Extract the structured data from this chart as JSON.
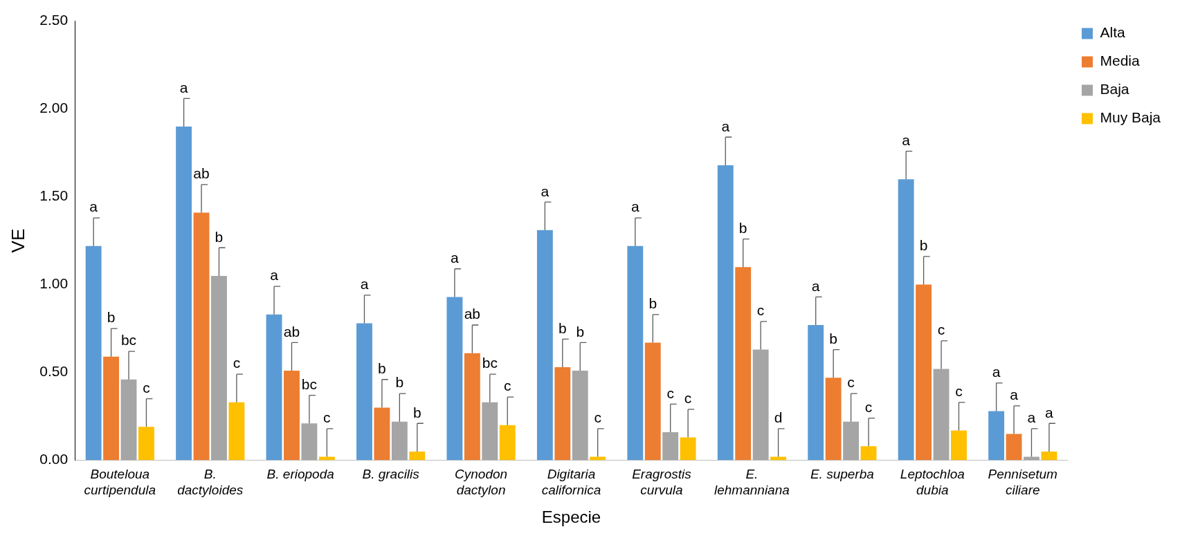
{
  "chart_data": {
    "type": "bar",
    "xlabel": "Especie",
    "ylabel": "VE",
    "categories": [
      "Bouteloua curtipendula",
      "B. dactyloides",
      "B. eriopoda",
      "B. gracilis",
      "Cynodon dactylon",
      "Digitaria californica",
      "Eragrostis curvula",
      "E. lehmanniana",
      "E. superba",
      "Leptochloa dubia",
      "Pennisetum ciliare"
    ],
    "series": [
      {
        "name": "Alta",
        "color": "#5b9bd5",
        "values": [
          1.22,
          1.9,
          0.83,
          0.78,
          0.93,
          1.31,
          1.22,
          1.68,
          0.77,
          1.6,
          0.28
        ],
        "errors": [
          [
            1.22,
            1.38
          ],
          [
            1.9,
            2.06
          ],
          [
            0.83,
            0.99
          ],
          [
            0.78,
            0.94
          ],
          [
            0.93,
            1.09
          ],
          [
            1.31,
            1.47
          ],
          [
            1.22,
            1.38
          ],
          [
            1.68,
            1.84
          ],
          [
            0.77,
            0.93
          ],
          [
            1.6,
            1.76
          ],
          [
            0.28,
            0.44
          ]
        ],
        "value_labels": [
          "a",
          "a",
          "a",
          "a",
          "a",
          "a",
          "a",
          "a",
          "a",
          "a",
          "a"
        ]
      },
      {
        "name": "Media",
        "color": "#ed7d31",
        "values": [
          0.59,
          1.41,
          0.51,
          0.3,
          0.61,
          0.53,
          0.67,
          1.1,
          0.47,
          1.0,
          0.15
        ],
        "errors": [
          [
            0.59,
            0.75
          ],
          [
            1.41,
            1.57
          ],
          [
            0.51,
            0.67
          ],
          [
            0.3,
            0.46
          ],
          [
            0.61,
            0.77
          ],
          [
            0.53,
            0.69
          ],
          [
            0.67,
            0.83
          ],
          [
            1.1,
            1.26
          ],
          [
            0.47,
            0.63
          ],
          [
            1.0,
            1.16
          ],
          [
            0.15,
            0.31
          ]
        ],
        "value_labels": [
          "b",
          "ab",
          "ab",
          "b",
          "ab",
          "b",
          "b",
          "b",
          "b",
          "b",
          "a"
        ]
      },
      {
        "name": "Baja",
        "color": "#a5a5a5",
        "values": [
          0.46,
          1.05,
          0.21,
          0.22,
          0.33,
          0.51,
          0.16,
          0.63,
          0.22,
          0.52,
          0.02
        ],
        "errors": [
          [
            0.46,
            0.62
          ],
          [
            1.05,
            1.21
          ],
          [
            0.21,
            0.37
          ],
          [
            0.22,
            0.38
          ],
          [
            0.33,
            0.49
          ],
          [
            0.51,
            0.67
          ],
          [
            0.16,
            0.32
          ],
          [
            0.63,
            0.79
          ],
          [
            0.22,
            0.38
          ],
          [
            0.52,
            0.68
          ],
          [
            0.02,
            0.18
          ]
        ],
        "value_labels": [
          "bc",
          "b",
          "bc",
          "b",
          "bc",
          "b",
          "c",
          "c",
          "c",
          "c",
          "a"
        ]
      },
      {
        "name": "Muy Baja",
        "color": "#ffc000",
        "values": [
          0.19,
          0.33,
          0.02,
          0.05,
          0.2,
          0.02,
          0.13,
          0.02,
          0.08,
          0.17,
          0.05
        ],
        "errors": [
          [
            0.19,
            0.35
          ],
          [
            0.33,
            0.49
          ],
          [
            0.02,
            0.18
          ],
          [
            0.05,
            0.21
          ],
          [
            0.2,
            0.36
          ],
          [
            0.02,
            0.18
          ],
          [
            0.13,
            0.29
          ],
          [
            0.02,
            0.18
          ],
          [
            0.08,
            0.24
          ],
          [
            0.17,
            0.33
          ],
          [
            0.05,
            0.21
          ]
        ],
        "value_labels": [
          "c",
          "c",
          "c",
          "b",
          "c",
          "c",
          "c",
          "d",
          "c",
          "c",
          "a"
        ]
      }
    ],
    "ylim": [
      0,
      2.5
    ],
    "yticks": [
      {
        "value": 0,
        "label": "0.00"
      },
      {
        "value": 0.5,
        "label": "0.50"
      },
      {
        "value": 1,
        "label": "1.00"
      },
      {
        "value": 1.5,
        "label": "1.50"
      },
      {
        "value": 2,
        "label": "2.00"
      },
      {
        "value": 2.5,
        "label": "2.50"
      }
    ],
    "grid": false,
    "legend": "top right"
  }
}
